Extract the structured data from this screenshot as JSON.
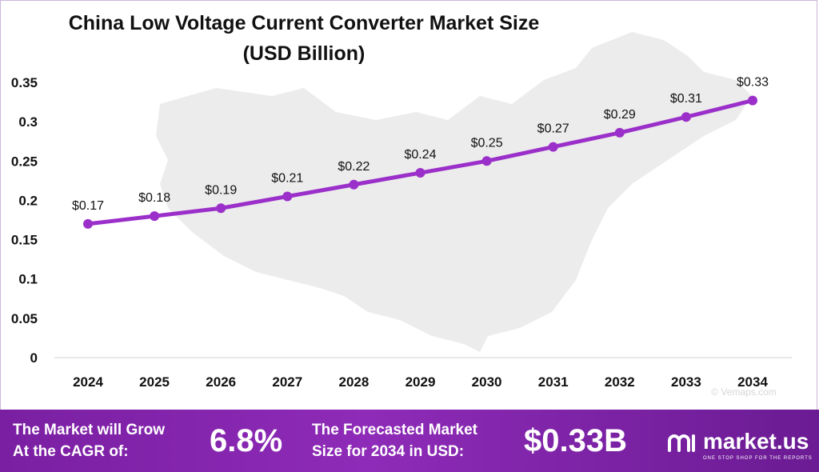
{
  "title_line1": "China Low Voltage Current Converter Market Size",
  "title_line2": "(USD Billion)",
  "chart_data": {
    "type": "line",
    "title": "China Low Voltage Current Converter Market Size (USD Billion)",
    "categories": [
      "2024",
      "2025",
      "2026",
      "2027",
      "2028",
      "2029",
      "2030",
      "2031",
      "2032",
      "2033",
      "2034"
    ],
    "values": [
      0.17,
      0.18,
      0.19,
      0.205,
      0.22,
      0.235,
      0.25,
      0.268,
      0.286,
      0.306,
      0.327
    ],
    "data_labels": [
      "$0.17",
      "$0.18",
      "$0.19",
      "$0.21",
      "$0.22",
      "$0.24",
      "$0.25",
      "$0.27",
      "$0.29",
      "$0.31",
      "$0.33"
    ],
    "y_ticks": [
      "0",
      "0.05",
      "0.1",
      "0.15",
      "0.2",
      "0.25",
      "0.3",
      "0.35"
    ],
    "ylim": [
      0,
      0.35
    ],
    "grid": false,
    "line_color": "#9b2fc9",
    "watermark": "© Vemaps.com"
  },
  "footer": {
    "cagr_label_line1": "The Market will Grow",
    "cagr_label_line2": "At the CAGR of:",
    "cagr_value": "6.8%",
    "forecast_label_line1": "The Forecasted Market",
    "forecast_label_line2": "Size for 2034 in USD:",
    "forecast_value": "$0.33B",
    "brand_name": "market.us",
    "brand_tagline": "ONE STOP SHOP FOR THE REPORTS"
  },
  "colors": {
    "accent": "#9b2fc9",
    "footer_start": "#7a1fa2",
    "footer_end": "#6b1b93",
    "map_fill": "#ebebeb"
  }
}
